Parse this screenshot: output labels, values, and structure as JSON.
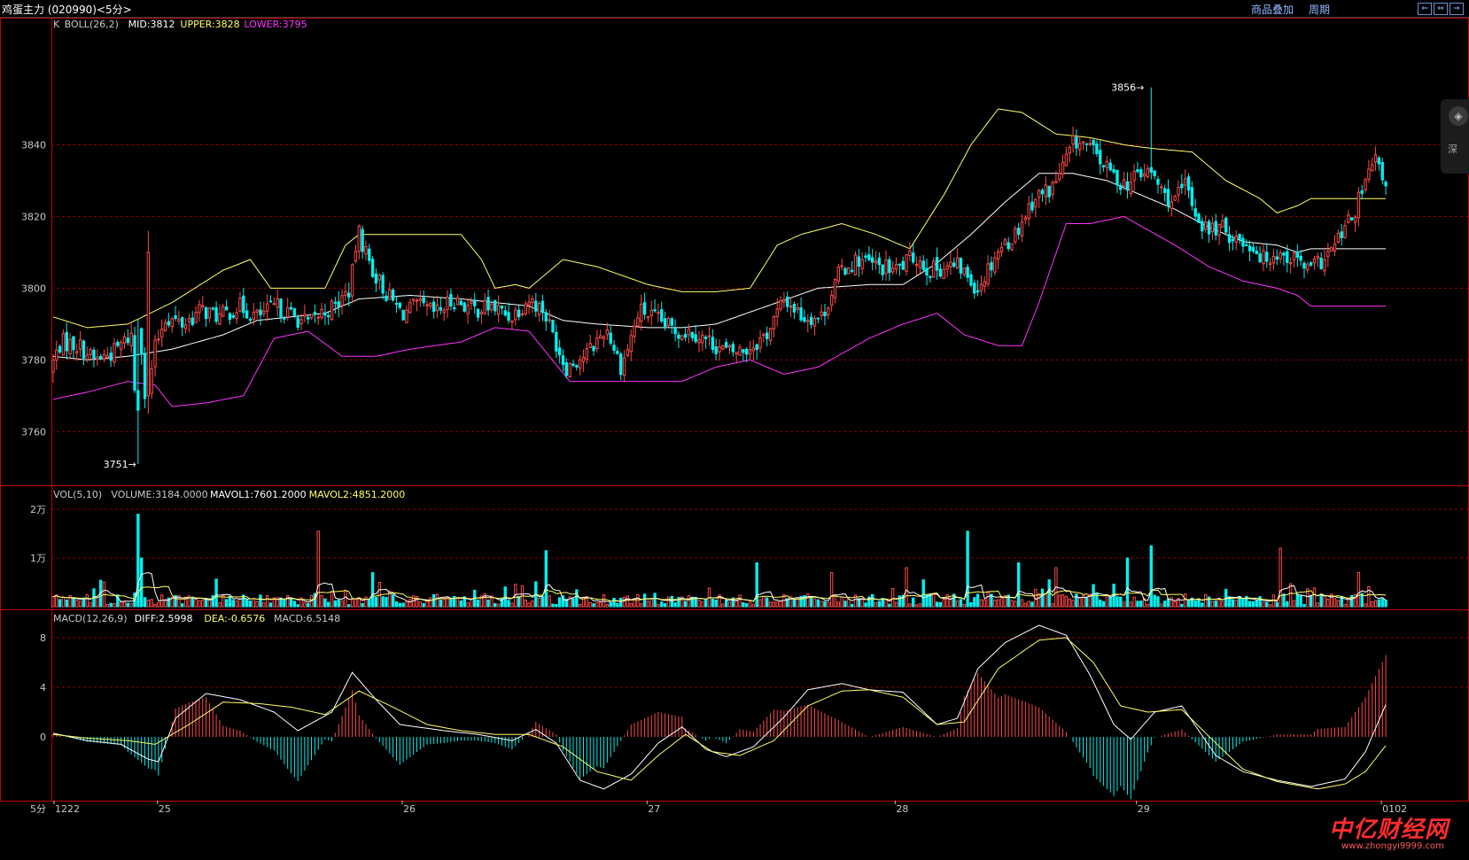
{
  "header": {
    "title": "鸡蛋主力 (020990)<5分>",
    "link_overlay": "商品叠加",
    "link_period": "周期",
    "window_buttons": [
      "⇐",
      "⇔",
      "⇒"
    ]
  },
  "side_button": {
    "icon": "shield-icon",
    "label": "深"
  },
  "watermark": {
    "brand": "中亿财经网",
    "url": "www.zhongyi9999.com"
  },
  "colors": {
    "up": "#ff4a4a",
    "down": "#00f0f0",
    "mid": "#ffffff",
    "upper": "#ffff66",
    "lower": "#ff33ff",
    "grid": "#8b0000",
    "axis": "#c00000",
    "mavol1": "#ffffff",
    "mavol2": "#ffff66",
    "diff": "#ffffff",
    "dea": "#ffff66"
  },
  "chart_data": {
    "type": "candlestick",
    "main_panel": {
      "legend": [
        {
          "key": "k",
          "text": "K",
          "color": "#c8c8c8"
        },
        {
          "key": "boll",
          "text": "BOLL(26,2)",
          "color": "#c8c8c8"
        },
        {
          "key": "mid",
          "text": "MID:3812",
          "color": "#ffffff"
        },
        {
          "key": "upper",
          "text": "UPPER:3828",
          "color": "#ffff66"
        },
        {
          "key": "lower",
          "text": "LOWER:3795",
          "color": "#ff33ff"
        }
      ],
      "ylim": [
        3746,
        3870
      ],
      "yticks": [
        3760,
        3780,
        3800,
        3820,
        3840
      ],
      "max_label": "3856",
      "max_value": 3856,
      "max_index": 296,
      "min_label": "3751",
      "min_value": 3751,
      "min_index": 23,
      "price_keypoints": [
        [
          0,
          3777
        ],
        [
          3,
          3785
        ],
        [
          8,
          3784
        ],
        [
          12,
          3780
        ],
        [
          17,
          3782
        ],
        [
          22,
          3787
        ],
        [
          23,
          3770
        ],
        [
          24,
          3795
        ],
        [
          26,
          3765
        ],
        [
          28,
          3782
        ],
        [
          31,
          3792
        ],
        [
          36,
          3790
        ],
        [
          41,
          3794
        ],
        [
          46,
          3792
        ],
        [
          51,
          3795
        ],
        [
          56,
          3792
        ],
        [
          61,
          3795
        ],
        [
          66,
          3792
        ],
        [
          70,
          3790
        ],
        [
          73,
          3793
        ],
        [
          77,
          3795
        ],
        [
          81,
          3800
        ],
        [
          83,
          3816
        ],
        [
          87,
          3805
        ],
        [
          91,
          3798
        ],
        [
          95,
          3793
        ],
        [
          99,
          3795
        ],
        [
          104,
          3793
        ],
        [
          109,
          3797
        ],
        [
          114,
          3794
        ],
        [
          119,
          3795
        ],
        [
          124,
          3792
        ],
        [
          129,
          3797
        ],
        [
          133,
          3794
        ],
        [
          139,
          3778
        ],
        [
          145,
          3782
        ],
        [
          150,
          3789
        ],
        [
          154,
          3778
        ],
        [
          159,
          3794
        ],
        [
          164,
          3791
        ],
        [
          169,
          3788
        ],
        [
          173,
          3788
        ],
        [
          178,
          3785
        ],
        [
          183,
          3782
        ],
        [
          188,
          3783
        ],
        [
          193,
          3787
        ],
        [
          198,
          3797
        ],
        [
          203,
          3792
        ],
        [
          208,
          3792
        ],
        [
          213,
          3805
        ],
        [
          218,
          3808
        ],
        [
          223,
          3806
        ],
        [
          228,
          3805
        ],
        [
          233,
          3809
        ],
        [
          237,
          3805
        ],
        [
          241,
          3806
        ],
        [
          245,
          3806
        ],
        [
          250,
          3800
        ],
        [
          255,
          3810
        ],
        [
          260,
          3815
        ],
        [
          265,
          3825
        ],
        [
          270,
          3828
        ],
        [
          273,
          3834
        ],
        [
          276,
          3841
        ],
        [
          279,
          3840
        ],
        [
          282,
          3837
        ],
        [
          285,
          3833
        ],
        [
          288,
          3830
        ],
        [
          291,
          3829
        ],
        [
          293,
          3832
        ],
        [
          297,
          3832
        ],
        [
          300,
          3826
        ],
        [
          303,
          3824
        ],
        [
          306,
          3829
        ],
        [
          309,
          3820
        ],
        [
          312,
          3816
        ],
        [
          315,
          3817
        ],
        [
          318,
          3815
        ],
        [
          321,
          3813
        ],
        [
          324,
          3812
        ],
        [
          327,
          3808
        ],
        [
          330,
          3810
        ],
        [
          333,
          3809
        ],
        [
          336,
          3808
        ],
        [
          339,
          3805
        ],
        [
          342,
          3807
        ],
        [
          345,
          3810
        ],
        [
          348,
          3815
        ],
        [
          351,
          3820
        ],
        [
          354,
          3828
        ],
        [
          357,
          3836
        ],
        [
          359,
          3830
        ],
        [
          0,
          3777
        ]
      ],
      "bars": 300,
      "boll_upper_keypoints": [
        [
          0,
          3792
        ],
        [
          10,
          3789
        ],
        [
          22,
          3790
        ],
        [
          35,
          3796
        ],
        [
          50,
          3805
        ],
        [
          58,
          3808
        ],
        [
          64,
          3800
        ],
        [
          74,
          3800
        ],
        [
          80,
          3800
        ],
        [
          86,
          3812
        ],
        [
          90,
          3815
        ],
        [
          120,
          3815
        ],
        [
          126,
          3808
        ],
        [
          130,
          3800
        ],
        [
          136,
          3801
        ],
        [
          140,
          3800
        ],
        [
          150,
          3808
        ],
        [
          160,
          3806
        ],
        [
          175,
          3801
        ],
        [
          185,
          3799
        ],
        [
          195,
          3799
        ],
        [
          205,
          3800
        ],
        [
          213,
          3812
        ],
        [
          220,
          3815
        ],
        [
          232,
          3818
        ],
        [
          242,
          3815
        ],
        [
          252,
          3811
        ],
        [
          262,
          3826
        ],
        [
          270,
          3840
        ],
        [
          278,
          3850
        ],
        [
          285,
          3849
        ],
        [
          295,
          3843
        ],
        [
          305,
          3842
        ],
        [
          315,
          3840
        ],
        [
          323,
          3839
        ],
        [
          335,
          3838
        ],
        [
          345,
          3830
        ],
        [
          355,
          3825
        ],
        [
          360,
          3821
        ],
        [
          366,
          3823
        ],
        [
          370,
          3825
        ]
      ],
      "boll_mid_keypoints": [
        [
          0,
          3781
        ],
        [
          10,
          3780
        ],
        [
          22,
          3781
        ],
        [
          35,
          3783
        ],
        [
          50,
          3787
        ],
        [
          60,
          3791
        ],
        [
          70,
          3792
        ],
        [
          80,
          3793
        ],
        [
          90,
          3797
        ],
        [
          105,
          3798
        ],
        [
          120,
          3797
        ],
        [
          130,
          3796
        ],
        [
          140,
          3795
        ],
        [
          150,
          3791
        ],
        [
          160,
          3790
        ],
        [
          175,
          3789
        ],
        [
          185,
          3789
        ],
        [
          195,
          3790
        ],
        [
          210,
          3795
        ],
        [
          225,
          3800
        ],
        [
          240,
          3801
        ],
        [
          250,
          3801
        ],
        [
          260,
          3807
        ],
        [
          270,
          3815
        ],
        [
          280,
          3824
        ],
        [
          290,
          3832
        ],
        [
          300,
          3832
        ],
        [
          310,
          3830
        ],
        [
          320,
          3826
        ],
        [
          330,
          3822
        ],
        [
          340,
          3817
        ],
        [
          350,
          3813
        ],
        [
          360,
          3812
        ],
        [
          366,
          3810
        ],
        [
          370,
          3811
        ]
      ],
      "boll_lower_keypoints": [
        [
          0,
          3769
        ],
        [
          10,
          3771
        ],
        [
          22,
          3774
        ],
        [
          30,
          3773
        ],
        [
          35,
          3767
        ],
        [
          45,
          3768
        ],
        [
          56,
          3770
        ],
        [
          65,
          3786
        ],
        [
          75,
          3788
        ],
        [
          85,
          3781
        ],
        [
          95,
          3781
        ],
        [
          105,
          3783
        ],
        [
          120,
          3785
        ],
        [
          130,
          3789
        ],
        [
          140,
          3788
        ],
        [
          152,
          3774
        ],
        [
          165,
          3774
        ],
        [
          175,
          3774
        ],
        [
          185,
          3774
        ],
        [
          195,
          3778
        ],
        [
          205,
          3780
        ],
        [
          215,
          3776
        ],
        [
          225,
          3778
        ],
        [
          240,
          3786
        ],
        [
          250,
          3790
        ],
        [
          260,
          3793
        ],
        [
          268,
          3787
        ],
        [
          278,
          3784
        ],
        [
          285,
          3784
        ],
        [
          290,
          3796
        ],
        [
          298,
          3818
        ],
        [
          305,
          3818
        ],
        [
          315,
          3820
        ],
        [
          330,
          3812
        ],
        [
          340,
          3806
        ],
        [
          350,
          3802
        ],
        [
          360,
          3800
        ],
        [
          366,
          3798
        ],
        [
          370,
          3795
        ]
      ]
    },
    "volume_panel": {
      "legend": [
        {
          "key": "vol",
          "text": "VOL(5,10)",
          "color": "#c8c8c8"
        },
        {
          "key": "volume",
          "text": "VOLUME:3184.0000",
          "color": "#c8c8c8"
        },
        {
          "key": "mavol1",
          "text": "MAVOL1:7601.2000",
          "color": "#ffffff"
        },
        {
          "key": "mavol2",
          "text": "MAVOL2:4851.2000",
          "color": "#ffff66"
        }
      ],
      "ylim": [
        0,
        22000
      ],
      "yticks": [
        {
          "v": 10000,
          "label": "1万"
        },
        {
          "v": 20000,
          "label": "2万"
        }
      ],
      "spikes": [
        [
          23,
          19000
        ],
        [
          24,
          10000
        ],
        [
          71,
          15500
        ],
        [
          86,
          7000
        ],
        [
          88,
          5000
        ],
        [
          133,
          11500
        ],
        [
          190,
          9000
        ],
        [
          210,
          7000
        ],
        [
          230,
          8000
        ],
        [
          246,
          15500
        ],
        [
          260,
          9000
        ],
        [
          270,
          8000
        ],
        [
          289,
          10000
        ],
        [
          296,
          12500
        ],
        [
          331,
          12000
        ],
        [
          352,
          7000
        ],
        [
          364,
          21000
        ]
      ]
    },
    "macd_panel": {
      "legend": [
        {
          "key": "macd",
          "text": "MACD(12,26,9)",
          "color": "#c8c8c8"
        },
        {
          "key": "diff",
          "text": "DIFF:2.5998",
          "color": "#ffffff"
        },
        {
          "key": "dea",
          "text": "DEA:-0.6576",
          "color": "#ffff66"
        },
        {
          "key": "macdv",
          "text": "MACD:6.5148",
          "color": "#c8c8c8"
        }
      ],
      "ylim": [
        -5,
        9
      ],
      "yticks": [
        0,
        4,
        8
      ],
      "diff_keypoints": [
        [
          0,
          0.3
        ],
        [
          10,
          -0.3
        ],
        [
          20,
          -0.6
        ],
        [
          28,
          -1.8
        ],
        [
          31,
          -2
        ],
        [
          36,
          1.5
        ],
        [
          45,
          3.5
        ],
        [
          55,
          3
        ],
        [
          65,
          2
        ],
        [
          72,
          0.5
        ],
        [
          82,
          2
        ],
        [
          88,
          5.2
        ],
        [
          95,
          3
        ],
        [
          102,
          1
        ],
        [
          115,
          0.5
        ],
        [
          125,
          0.2
        ],
        [
          135,
          -0.3
        ],
        [
          142,
          0.6
        ],
        [
          148,
          -0.5
        ],
        [
          155,
          -3.5
        ],
        [
          162,
          -4.2
        ],
        [
          170,
          -3
        ],
        [
          178,
          -0.5
        ],
        [
          185,
          0.8
        ],
        [
          192,
          -1
        ],
        [
          198,
          -1.6
        ],
        [
          206,
          -0.8
        ],
        [
          215,
          1.6
        ],
        [
          222,
          3.8
        ],
        [
          232,
          4.3
        ],
        [
          240,
          3.8
        ],
        [
          250,
          3.6
        ],
        [
          260,
          1
        ],
        [
          266,
          1.5
        ],
        [
          272,
          5.5
        ],
        [
          280,
          7.6
        ],
        [
          290,
          9.0
        ],
        [
          298,
          8.2
        ],
        [
          305,
          5
        ],
        [
          312,
          1
        ],
        [
          317,
          -0.2
        ],
        [
          324,
          2
        ],
        [
          332,
          2.5
        ],
        [
          342,
          -1.5
        ],
        [
          350,
          -2.8
        ],
        [
          360,
          -3.5
        ],
        [
          370,
          -4
        ],
        [
          380,
          -3.4
        ],
        [
          386,
          -1.2
        ],
        [
          392,
          2.6
        ]
      ],
      "dea_keypoints": [
        [
          0,
          0.2
        ],
        [
          10,
          -0.1
        ],
        [
          22,
          -0.3
        ],
        [
          30,
          -0.6
        ],
        [
          40,
          1
        ],
        [
          50,
          2.8
        ],
        [
          60,
          2.7
        ],
        [
          70,
          2.4
        ],
        [
          80,
          1.8
        ],
        [
          90,
          3.7
        ],
        [
          100,
          2.4
        ],
        [
          110,
          1
        ],
        [
          120,
          0.5
        ],
        [
          130,
          0.2
        ],
        [
          140,
          0.2
        ],
        [
          150,
          -0.8
        ],
        [
          160,
          -2.8
        ],
        [
          170,
          -3.5
        ],
        [
          178,
          -1.5
        ],
        [
          186,
          0.2
        ],
        [
          194,
          -1.2
        ],
        [
          202,
          -1.5
        ],
        [
          212,
          -0.3
        ],
        [
          222,
          2.5
        ],
        [
          232,
          3.7
        ],
        [
          240,
          3.8
        ],
        [
          250,
          3.2
        ],
        [
          260,
          1
        ],
        [
          268,
          1.2
        ],
        [
          278,
          5.5
        ],
        [
          290,
          7.8
        ],
        [
          298,
          8
        ],
        [
          306,
          6
        ],
        [
          314,
          2.5
        ],
        [
          322,
          2
        ],
        [
          332,
          2.2
        ],
        [
          342,
          -0.5
        ],
        [
          350,
          -2.6
        ],
        [
          360,
          -3.6
        ],
        [
          372,
          -4.2
        ],
        [
          380,
          -3.8
        ],
        [
          386,
          -2.8
        ],
        [
          392,
          -0.7
        ]
      ]
    },
    "time_axis": {
      "period_label": "5分",
      "labels": [
        {
          "i": 0,
          "text": "1222"
        },
        {
          "i": 30,
          "text": "25"
        },
        {
          "i": 97,
          "text": "26"
        },
        {
          "i": 164,
          "text": "27"
        },
        {
          "i": 232,
          "text": "28"
        },
        {
          "i": 298,
          "text": "29"
        },
        {
          "i": 365,
          "text": "0102"
        }
      ]
    }
  }
}
